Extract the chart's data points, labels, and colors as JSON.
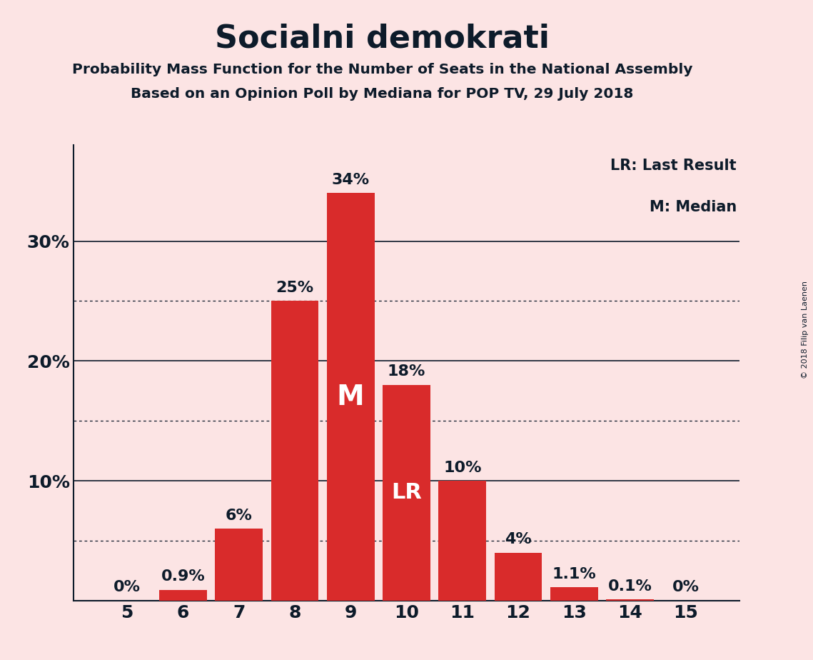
{
  "title": "Socialni demokrati",
  "subtitle1": "Probability Mass Function for the Number of Seats in the National Assembly",
  "subtitle2": "Based on an Opinion Poll by Mediana for POP TV, 29 July 2018",
  "copyright": "© 2018 Filip van Laenen",
  "legend_lr": "LR: Last Result",
  "legend_m": "M: Median",
  "background_color": "#fce4e4",
  "bar_color": "#d92b2b",
  "categories": [
    5,
    6,
    7,
    8,
    9,
    10,
    11,
    12,
    13,
    14,
    15
  ],
  "values": [
    0.0,
    0.9,
    6.0,
    25.0,
    34.0,
    18.0,
    10.0,
    4.0,
    1.1,
    0.1,
    0.0
  ],
  "labels": [
    "0%",
    "0.9%",
    "6%",
    "25%",
    "34%",
    "18%",
    "10%",
    "4%",
    "1.1%",
    "0.1%",
    "0%"
  ],
  "median_seat": 9,
  "lr_seat": 10,
  "yticks": [
    10,
    20,
    30
  ],
  "ylim": [
    0,
    38
  ],
  "dotted_lines": [
    5,
    15,
    25
  ],
  "solid_lines": [
    10,
    20,
    30
  ],
  "text_color": "#0d1b2a"
}
